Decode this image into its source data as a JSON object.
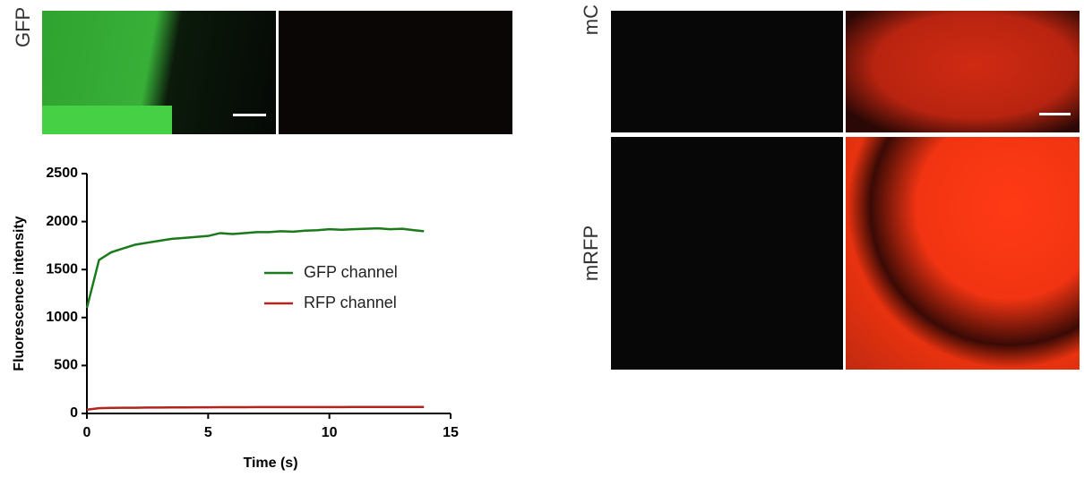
{
  "labels": {
    "left_row": "GFP",
    "right_row_1": "mC",
    "right_row_2": "mRFP"
  },
  "chart_data": {
    "type": "line",
    "x_label": "Time (s)",
    "y_label": "Fluorescence intensity",
    "x": [
      0,
      0.5,
      1,
      1.5,
      2,
      2.5,
      3,
      3.5,
      4,
      4.5,
      5,
      5.5,
      6,
      6.5,
      7,
      7.5,
      8,
      8.5,
      9,
      9.5,
      10,
      10.5,
      11,
      11.5,
      12,
      12.5,
      13,
      13.5,
      13.9
    ],
    "series": [
      {
        "name": "GFP channel",
        "color": "#1a7a1a",
        "values": [
          1100,
          1600,
          1680,
          1720,
          1760,
          1780,
          1800,
          1820,
          1830,
          1840,
          1850,
          1880,
          1870,
          1880,
          1890,
          1890,
          1900,
          1895,
          1905,
          1910,
          1920,
          1915,
          1920,
          1925,
          1930,
          1920,
          1925,
          1910,
          1900
        ]
      },
      {
        "name": "RFP channel",
        "color": "#b0261e",
        "values": [
          40,
          55,
          58,
          60,
          60,
          62,
          62,
          63,
          63,
          64,
          64,
          65,
          65,
          65,
          66,
          66,
          66,
          66,
          67,
          67,
          67,
          67,
          68,
          68,
          68,
          68,
          68,
          68,
          68
        ]
      }
    ],
    "xlim": [
      0,
      15
    ],
    "ylim": [
      0,
      2500
    ],
    "xticks": [
      0,
      5,
      10,
      15
    ],
    "yticks": [
      0,
      500,
      1000,
      1500,
      2000,
      2500
    ],
    "legend": "center-right"
  }
}
